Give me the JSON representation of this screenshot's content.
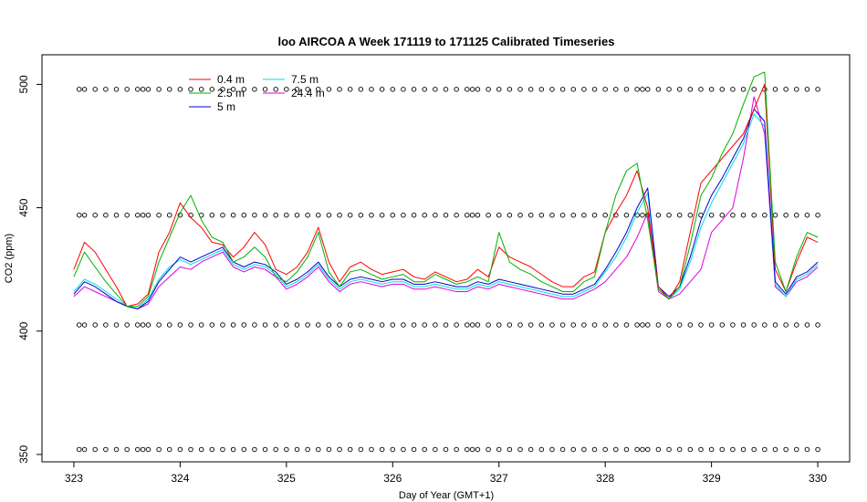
{
  "chart_data": {
    "type": "line",
    "title": "loo AIRCOA A  Week 171119 to 171125  Calibrated Timeseries",
    "xlabel": "Day of Year (GMT+1)",
    "ylabel": "CO2 (ppm)",
    "xlim": [
      322.7,
      330.3
    ],
    "ylim": [
      347,
      512
    ],
    "x_ticks": [
      323,
      324,
      325,
      326,
      327,
      328,
      329,
      330
    ],
    "y_ticks": [
      350,
      400,
      450,
      500
    ],
    "grid": false,
    "legend_position": "top-left",
    "series": [
      {
        "name": "0.4 m",
        "color": "#ff0000",
        "x": [
          323.0,
          323.1,
          323.2,
          323.3,
          323.4,
          323.5,
          323.6,
          323.7,
          323.8,
          323.9,
          324.0,
          324.1,
          324.2,
          324.3,
          324.4,
          324.5,
          324.6,
          324.7,
          324.8,
          324.9,
          325.0,
          325.1,
          325.2,
          325.3,
          325.4,
          325.5,
          325.6,
          325.7,
          325.8,
          325.9,
          326.0,
          326.1,
          326.2,
          326.3,
          326.4,
          326.5,
          326.6,
          326.7,
          326.8,
          326.9,
          327.0,
          327.1,
          327.2,
          327.3,
          327.4,
          327.5,
          327.6,
          327.7,
          327.8,
          327.9,
          328.0,
          328.1,
          328.2,
          328.3,
          328.4,
          328.5,
          328.6,
          328.7,
          328.8,
          328.9,
          329.0,
          329.1,
          329.2,
          329.3,
          329.4,
          329.5,
          329.6,
          329.7,
          329.8,
          329.9,
          330.0
        ],
        "y": [
          425,
          436,
          432,
          425,
          418,
          410,
          411,
          415,
          432,
          440,
          452,
          446,
          442,
          436,
          435,
          430,
          434,
          440,
          435,
          425,
          423,
          426,
          432,
          442,
          428,
          420,
          426,
          428,
          425,
          423,
          424,
          425,
          422,
          421,
          424,
          422,
          420,
          421,
          425,
          422,
          434,
          430,
          428,
          426,
          423,
          420,
          418,
          418,
          422,
          424,
          440,
          448,
          455,
          465,
          450,
          418,
          413,
          420,
          440,
          460,
          465,
          470,
          475,
          480,
          490,
          500,
          425,
          416,
          428,
          438,
          436
        ]
      },
      {
        "name": "2.5 m",
        "color": "#00b000",
        "x": [
          323.0,
          323.1,
          323.2,
          323.3,
          323.4,
          323.5,
          323.6,
          323.7,
          323.8,
          323.9,
          324.0,
          324.1,
          324.2,
          324.3,
          324.4,
          324.5,
          324.6,
          324.7,
          324.8,
          324.9,
          325.0,
          325.1,
          325.2,
          325.3,
          325.4,
          325.5,
          325.6,
          325.7,
          325.8,
          325.9,
          326.0,
          326.1,
          326.2,
          326.3,
          326.4,
          326.5,
          326.6,
          326.7,
          326.8,
          326.9,
          327.0,
          327.1,
          327.2,
          327.3,
          327.4,
          327.5,
          327.6,
          327.7,
          327.8,
          327.9,
          328.0,
          328.1,
          328.2,
          328.3,
          328.4,
          328.5,
          328.6,
          328.7,
          328.8,
          328.9,
          329.0,
          329.1,
          329.2,
          329.3,
          329.4,
          329.5,
          329.6,
          329.7,
          329.8,
          329.9,
          330.0
        ],
        "y": [
          422,
          432,
          426,
          420,
          415,
          410,
          410,
          414,
          428,
          438,
          448,
          455,
          445,
          438,
          436,
          428,
          430,
          434,
          430,
          422,
          420,
          424,
          430,
          440,
          424,
          418,
          424,
          425,
          423,
          421,
          422,
          423,
          420,
          420,
          423,
          421,
          419,
          420,
          422,
          420,
          440,
          428,
          425,
          423,
          420,
          418,
          416,
          416,
          420,
          422,
          440,
          455,
          465,
          468,
          445,
          417,
          413,
          418,
          435,
          455,
          462,
          472,
          480,
          492,
          503,
          505,
          428,
          416,
          430,
          440,
          438
        ]
      },
      {
        "name": "5 m",
        "color": "#0000cc",
        "x": [
          323.0,
          323.1,
          323.2,
          323.3,
          323.4,
          323.5,
          323.6,
          323.7,
          323.8,
          323.9,
          324.0,
          324.1,
          324.2,
          324.3,
          324.4,
          324.5,
          324.6,
          324.7,
          324.8,
          324.9,
          325.0,
          325.1,
          325.2,
          325.3,
          325.4,
          325.5,
          325.6,
          325.7,
          325.8,
          325.9,
          326.0,
          326.1,
          326.2,
          326.3,
          326.4,
          326.5,
          326.6,
          326.7,
          326.8,
          326.9,
          327.0,
          327.1,
          327.2,
          327.3,
          327.4,
          327.5,
          327.6,
          327.7,
          327.8,
          327.9,
          328.0,
          328.1,
          328.2,
          328.3,
          328.4,
          328.5,
          328.6,
          328.7,
          328.8,
          328.9,
          329.0,
          329.1,
          329.2,
          329.3,
          329.4,
          329.5,
          329.6,
          329.7,
          329.8,
          329.9,
          330.0
        ],
        "y": [
          415,
          420,
          418,
          415,
          412,
          410,
          409,
          412,
          420,
          425,
          430,
          428,
          430,
          432,
          434,
          428,
          426,
          428,
          427,
          424,
          419,
          421,
          424,
          428,
          422,
          418,
          421,
          422,
          421,
          420,
          421,
          421,
          419,
          419,
          420,
          419,
          418,
          418,
          420,
          419,
          421,
          420,
          419,
          418,
          417,
          416,
          415,
          415,
          417,
          419,
          425,
          432,
          440,
          450,
          458,
          418,
          414,
          418,
          430,
          445,
          455,
          462,
          470,
          478,
          490,
          485,
          420,
          415,
          422,
          424,
          428
        ]
      },
      {
        "name": "7.5 m",
        "color": "#00dddd",
        "x": [
          323.0,
          323.1,
          323.2,
          323.3,
          323.4,
          323.5,
          323.6,
          323.7,
          323.8,
          323.9,
          324.0,
          324.1,
          324.2,
          324.3,
          324.4,
          324.5,
          324.6,
          324.7,
          324.8,
          324.9,
          325.0,
          325.1,
          325.2,
          325.3,
          325.4,
          325.5,
          325.6,
          325.7,
          325.8,
          325.9,
          326.0,
          326.1,
          326.2,
          326.3,
          326.4,
          326.5,
          326.6,
          326.7,
          326.8,
          326.9,
          327.0,
          327.1,
          327.2,
          327.3,
          327.4,
          327.5,
          327.6,
          327.7,
          327.8,
          327.9,
          328.0,
          328.1,
          328.2,
          328.3,
          328.4,
          328.5,
          328.6,
          328.7,
          328.8,
          328.9,
          329.0,
          329.1,
          329.2,
          329.3,
          329.4,
          329.5,
          329.6,
          329.7,
          329.8,
          329.9,
          330.0
        ],
        "y": [
          416,
          421,
          419,
          416,
          413,
          410,
          409,
          413,
          421,
          426,
          429,
          427,
          429,
          431,
          433,
          427,
          425,
          427,
          426,
          423,
          418,
          420,
          423,
          427,
          421,
          417,
          420,
          421,
          420,
          419,
          420,
          420,
          418,
          418,
          419,
          418,
          417,
          417,
          419,
          418,
          420,
          419,
          418,
          417,
          416,
          415,
          414,
          414,
          416,
          418,
          424,
          430,
          438,
          448,
          456,
          417,
          413,
          417,
          428,
          442,
          452,
          460,
          468,
          476,
          488,
          483,
          419,
          414,
          421,
          423,
          427
        ]
      },
      {
        "name": "24.4 m",
        "color": "#dd00dd",
        "x": [
          323.0,
          323.1,
          323.2,
          323.3,
          323.4,
          323.5,
          323.6,
          323.7,
          323.8,
          323.9,
          324.0,
          324.1,
          324.2,
          324.3,
          324.4,
          324.5,
          324.6,
          324.7,
          324.8,
          324.9,
          325.0,
          325.1,
          325.2,
          325.3,
          325.4,
          325.5,
          325.6,
          325.7,
          325.8,
          325.9,
          326.0,
          326.1,
          326.2,
          326.3,
          326.4,
          326.5,
          326.6,
          326.7,
          326.8,
          326.9,
          327.0,
          327.1,
          327.2,
          327.3,
          327.4,
          327.5,
          327.6,
          327.7,
          327.8,
          327.9,
          328.0,
          328.1,
          328.2,
          328.3,
          328.4,
          328.5,
          328.6,
          328.7,
          328.8,
          328.9,
          329.0,
          329.1,
          329.2,
          329.3,
          329.4,
          329.5,
          329.6,
          329.7,
          329.8,
          329.9,
          330.0
        ],
        "y": [
          414,
          418,
          416,
          414,
          412,
          410,
          409,
          411,
          418,
          422,
          426,
          425,
          428,
          430,
          432,
          426,
          424,
          426,
          425,
          422,
          417,
          419,
          422,
          426,
          420,
          416,
          419,
          420,
          419,
          418,
          419,
          419,
          417,
          417,
          418,
          417,
          416,
          416,
          418,
          417,
          419,
          418,
          417,
          416,
          415,
          414,
          413,
          413,
          415,
          417,
          420,
          425,
          430,
          438,
          448,
          416,
          413,
          415,
          420,
          425,
          440,
          445,
          450,
          470,
          495,
          480,
          418,
          414,
          420,
          422,
          426
        ]
      }
    ],
    "calibration_markers": {
      "symbol": "open circle",
      "levels": [
        352,
        402.5,
        447,
        498
      ],
      "x": [
        323.05,
        323.1,
        323.2,
        323.3,
        323.4,
        323.5,
        323.6,
        323.65,
        323.7,
        323.8,
        323.9,
        324.0,
        324.1,
        324.2,
        324.3,
        324.4,
        324.5,
        324.6,
        324.7,
        324.8,
        324.9,
        325.0,
        325.1,
        325.2,
        325.3,
        325.4,
        325.5,
        325.6,
        325.7,
        325.8,
        325.9,
        326.0,
        326.1,
        326.2,
        326.3,
        326.4,
        326.5,
        326.6,
        326.7,
        326.75,
        326.8,
        326.9,
        327.0,
        327.1,
        327.2,
        327.3,
        327.4,
        327.5,
        327.6,
        327.7,
        327.8,
        327.9,
        328.0,
        328.1,
        328.2,
        328.3,
        328.35,
        328.4,
        328.5,
        328.6,
        328.7,
        328.8,
        328.9,
        329.0,
        329.1,
        329.2,
        329.3,
        329.4,
        329.5,
        329.6,
        329.7,
        329.8,
        329.9,
        330.0
      ]
    }
  }
}
